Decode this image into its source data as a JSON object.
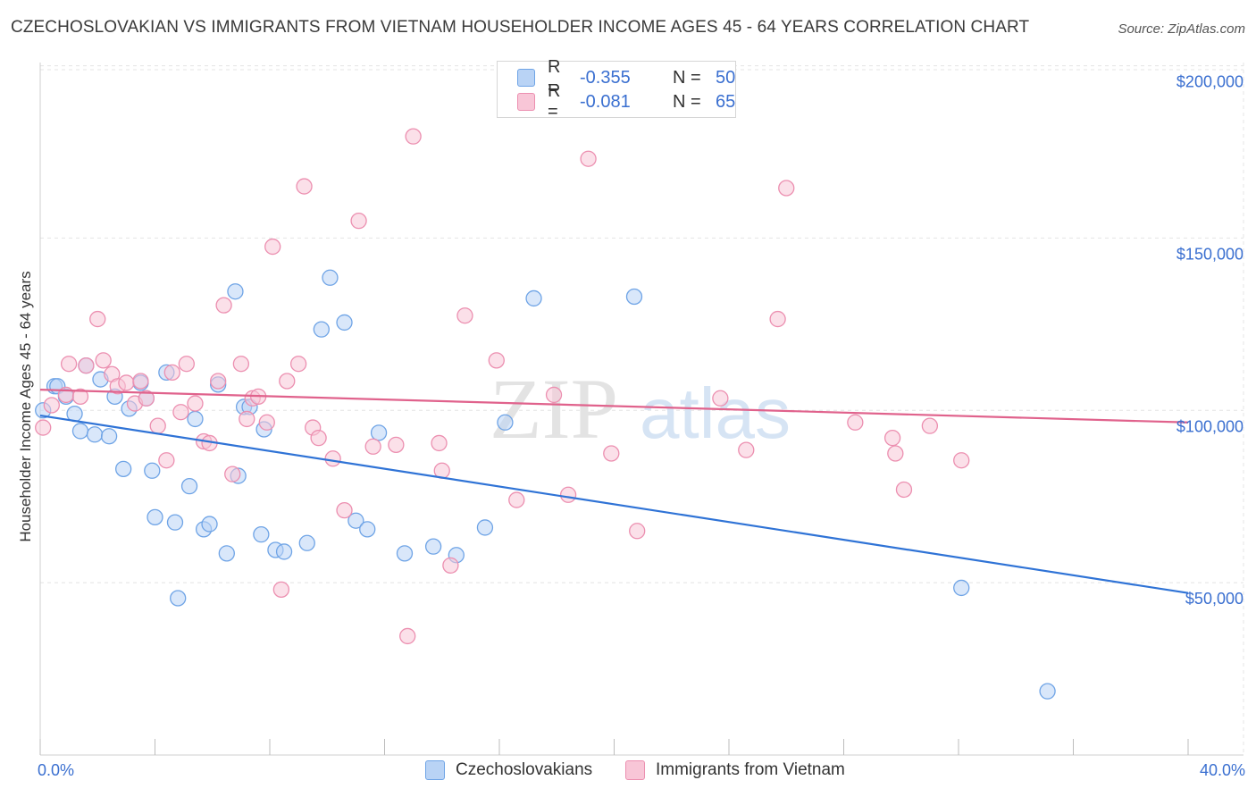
{
  "title": "CZECHOSLOVAKIAN VS IMMIGRANTS FROM VIETNAM HOUSEHOLDER INCOME AGES 45 - 64 YEARS CORRELATION CHART",
  "source": "Source: ZipAtlas.com",
  "watermark": {
    "zip": "ZIP",
    "atlas": "atlas"
  },
  "legend": {
    "rows": [
      {
        "r_label": "R =",
        "r_value": "-0.355",
        "n_label": "N =",
        "n_value": "50"
      },
      {
        "r_label": "R =",
        "r_value": "-0.081",
        "n_label": "N =",
        "n_value": "65"
      }
    ]
  },
  "chart_data": {
    "type": "scatter",
    "title": "CZECHOSLOVAKIAN VS IMMIGRANTS FROM VIETNAM HOUSEHOLDER INCOME AGES 45 - 64 YEARS CORRELATION CHART",
    "xlabel": "",
    "ylabel": "Householder Income Ages 45 - 64 years",
    "xlim": [
      0,
      40
    ],
    "ylim": [
      0,
      210000
    ],
    "x_tick_labels": [
      "0.0%",
      "40.0%"
    ],
    "y_ticks": [
      50000,
      100000,
      150000,
      200000
    ],
    "y_tick_labels": [
      "$50,000",
      "$100,000",
      "$150,000",
      "$200,000"
    ],
    "grid": true,
    "legend_placement": "bottom",
    "series": [
      {
        "name": "Czechoslovakians",
        "color": "#6fa4e6",
        "fill": "#b9d3f5",
        "trend": {
          "x": [
            0,
            40
          ],
          "y": [
            98500,
            47000
          ],
          "color": "#2f73d6"
        },
        "points": [
          [
            0.1,
            100000
          ],
          [
            0.5,
            107000
          ],
          [
            0.6,
            107000
          ],
          [
            0.9,
            104000
          ],
          [
            1.2,
            99000
          ],
          [
            1.4,
            94000
          ],
          [
            1.6,
            113000
          ],
          [
            1.9,
            93000
          ],
          [
            2.1,
            109000
          ],
          [
            2.4,
            92500
          ],
          [
            2.6,
            104000
          ],
          [
            2.9,
            83000
          ],
          [
            3.1,
            100500
          ],
          [
            3.5,
            108000
          ],
          [
            3.7,
            103500
          ],
          [
            3.9,
            82500
          ],
          [
            4.0,
            69000
          ],
          [
            4.4,
            111000
          ],
          [
            4.7,
            67500
          ],
          [
            4.8,
            45500
          ],
          [
            5.2,
            78000
          ],
          [
            5.4,
            97500
          ],
          [
            5.7,
            65500
          ],
          [
            5.9,
            67000
          ],
          [
            6.2,
            107500
          ],
          [
            6.5,
            58500
          ],
          [
            6.8,
            134500
          ],
          [
            6.9,
            81000
          ],
          [
            7.1,
            101000
          ],
          [
            7.3,
            101000
          ],
          [
            7.7,
            64000
          ],
          [
            7.8,
            94500
          ],
          [
            8.2,
            59500
          ],
          [
            8.5,
            59000
          ],
          [
            9.3,
            61500
          ],
          [
            9.8,
            123500
          ],
          [
            10.1,
            138500
          ],
          [
            10.6,
            125500
          ],
          [
            11.0,
            68000
          ],
          [
            11.4,
            65500
          ],
          [
            11.8,
            93500
          ],
          [
            12.7,
            58500
          ],
          [
            13.7,
            60500
          ],
          [
            14.5,
            58000
          ],
          [
            15.5,
            66000
          ],
          [
            16.2,
            96500
          ],
          [
            17.2,
            132500
          ],
          [
            20.7,
            133000
          ],
          [
            32.1,
            48500
          ],
          [
            35.1,
            18500
          ]
        ]
      },
      {
        "name": "Immigrants from Vietnam",
        "color": "#ec8fb0",
        "fill": "#f8c6d7",
        "trend": {
          "x": [
            0,
            40
          ],
          "y": [
            106000,
            96500
          ],
          "color": "#e0628c"
        },
        "points": [
          [
            0.1,
            95000
          ],
          [
            0.4,
            101500
          ],
          [
            0.9,
            104500
          ],
          [
            1.0,
            113500
          ],
          [
            1.4,
            104000
          ],
          [
            1.6,
            113000
          ],
          [
            2.0,
            126500
          ],
          [
            2.2,
            114500
          ],
          [
            2.5,
            110500
          ],
          [
            2.7,
            107000
          ],
          [
            3.0,
            108000
          ],
          [
            3.3,
            102000
          ],
          [
            3.5,
            108500
          ],
          [
            3.7,
            103500
          ],
          [
            4.1,
            95500
          ],
          [
            4.4,
            85500
          ],
          [
            4.6,
            111000
          ],
          [
            4.9,
            99500
          ],
          [
            5.1,
            113500
          ],
          [
            5.4,
            102000
          ],
          [
            5.7,
            91000
          ],
          [
            5.9,
            90500
          ],
          [
            6.2,
            108500
          ],
          [
            6.4,
            130500
          ],
          [
            6.7,
            81500
          ],
          [
            7.0,
            113500
          ],
          [
            7.2,
            97500
          ],
          [
            7.4,
            103500
          ],
          [
            7.6,
            104000
          ],
          [
            7.9,
            96500
          ],
          [
            8.1,
            147500
          ],
          [
            8.4,
            48000
          ],
          [
            8.6,
            108500
          ],
          [
            9.0,
            113500
          ],
          [
            9.2,
            165000
          ],
          [
            9.5,
            95000
          ],
          [
            9.7,
            92000
          ],
          [
            10.2,
            86000
          ],
          [
            10.6,
            71000
          ],
          [
            11.1,
            155000
          ],
          [
            11.6,
            89500
          ],
          [
            12.4,
            90000
          ],
          [
            12.8,
            34500
          ],
          [
            13.0,
            179500
          ],
          [
            13.9,
            90500
          ],
          [
            14.3,
            55000
          ],
          [
            14.0,
            82500
          ],
          [
            14.8,
            127500
          ],
          [
            15.9,
            114500
          ],
          [
            16.6,
            74000
          ],
          [
            17.9,
            104500
          ],
          [
            18.4,
            75500
          ],
          [
            19.1,
            173000
          ],
          [
            19.9,
            87500
          ],
          [
            20.8,
            65000
          ],
          [
            23.7,
            103500
          ],
          [
            24.6,
            88500
          ],
          [
            25.7,
            126500
          ],
          [
            26.0,
            164500
          ],
          [
            28.4,
            96500
          ],
          [
            29.7,
            92000
          ],
          [
            29.8,
            87500
          ],
          [
            30.1,
            77000
          ],
          [
            31.0,
            95500
          ],
          [
            32.1,
            85500
          ]
        ]
      }
    ]
  }
}
